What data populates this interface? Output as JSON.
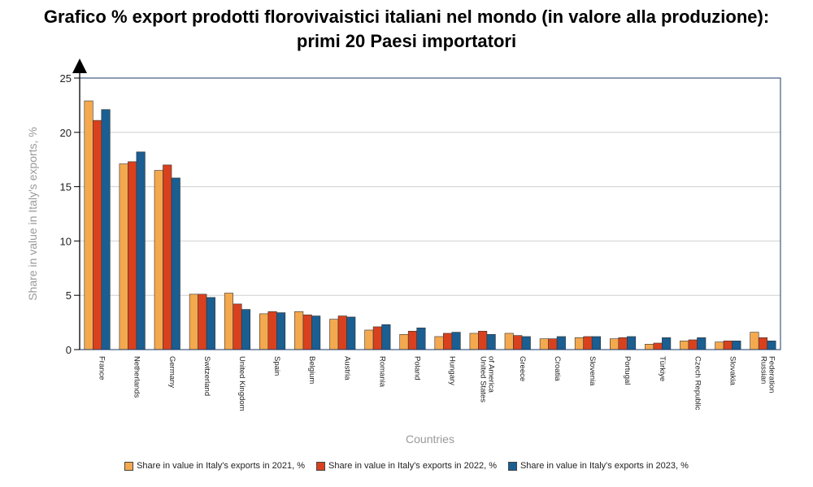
{
  "title_line1": "Grafico % export prodotti florovivaistici italiani nel mondo (in valore alla produzione):",
  "title_line2": "primi 20 Paesi importatori",
  "chart_data": {
    "type": "bar",
    "xlabel": "Countries",
    "ylabel": "Share in value in Italy's exports, %",
    "ylim": [
      0,
      25
    ],
    "yticks": [
      0,
      5,
      10,
      15,
      20,
      25
    ],
    "grid": true,
    "legend_position": "bottom",
    "categories": [
      "France",
      "Netherlands",
      "Germany",
      "Switzerland",
      "United Kingdom",
      "Spain",
      "Belgium",
      "Austria",
      "Romania",
      "Poland",
      "Hungary",
      "United States of America",
      "Greece",
      "Croatia",
      "Slovenia",
      "Portugal",
      "Türkiye",
      "Czech Republic",
      "Slovakia",
      "Russian Federation"
    ],
    "category_lines": [
      [
        "France"
      ],
      [
        "Netherlands"
      ],
      [
        "Germany"
      ],
      [
        "Switzerland"
      ],
      [
        "United Kingdom"
      ],
      [
        "Spain"
      ],
      [
        "Belgium"
      ],
      [
        "Austria"
      ],
      [
        "Romania"
      ],
      [
        "Poland"
      ],
      [
        "Hungary"
      ],
      [
        "United States",
        "of America"
      ],
      [
        "Greece"
      ],
      [
        "Croatia"
      ],
      [
        "Slovenia"
      ],
      [
        "Portugal"
      ],
      [
        "Türkiye"
      ],
      [
        "Czech Republic"
      ],
      [
        "Slovakia"
      ],
      [
        "Russian",
        "Federation"
      ]
    ],
    "series": [
      {
        "name": "Share in value in Italy's exports in 2021, %",
        "color": "#F4A94E",
        "values": [
          22.9,
          17.1,
          16.5,
          5.1,
          5.2,
          3.3,
          3.5,
          2.8,
          1.8,
          1.4,
          1.2,
          1.5,
          1.5,
          1.0,
          1.1,
          1.0,
          0.5,
          0.8,
          0.7,
          1.6
        ]
      },
      {
        "name": "Share in value in Italy's exports in 2022, %",
        "color": "#D9411E",
        "values": [
          21.1,
          17.3,
          17.0,
          5.1,
          4.2,
          3.5,
          3.2,
          3.1,
          2.1,
          1.7,
          1.5,
          1.7,
          1.3,
          1.0,
          1.2,
          1.1,
          0.6,
          0.9,
          0.8,
          1.1
        ]
      },
      {
        "name": "Share in value in Italy's exports in 2023, %",
        "color": "#1A5E92",
        "values": [
          22.1,
          18.2,
          15.8,
          4.8,
          3.7,
          3.4,
          3.1,
          3.0,
          2.3,
          2.0,
          1.6,
          1.4,
          1.2,
          1.2,
          1.2,
          1.2,
          1.1,
          1.1,
          0.8,
          0.8
        ]
      }
    ]
  }
}
